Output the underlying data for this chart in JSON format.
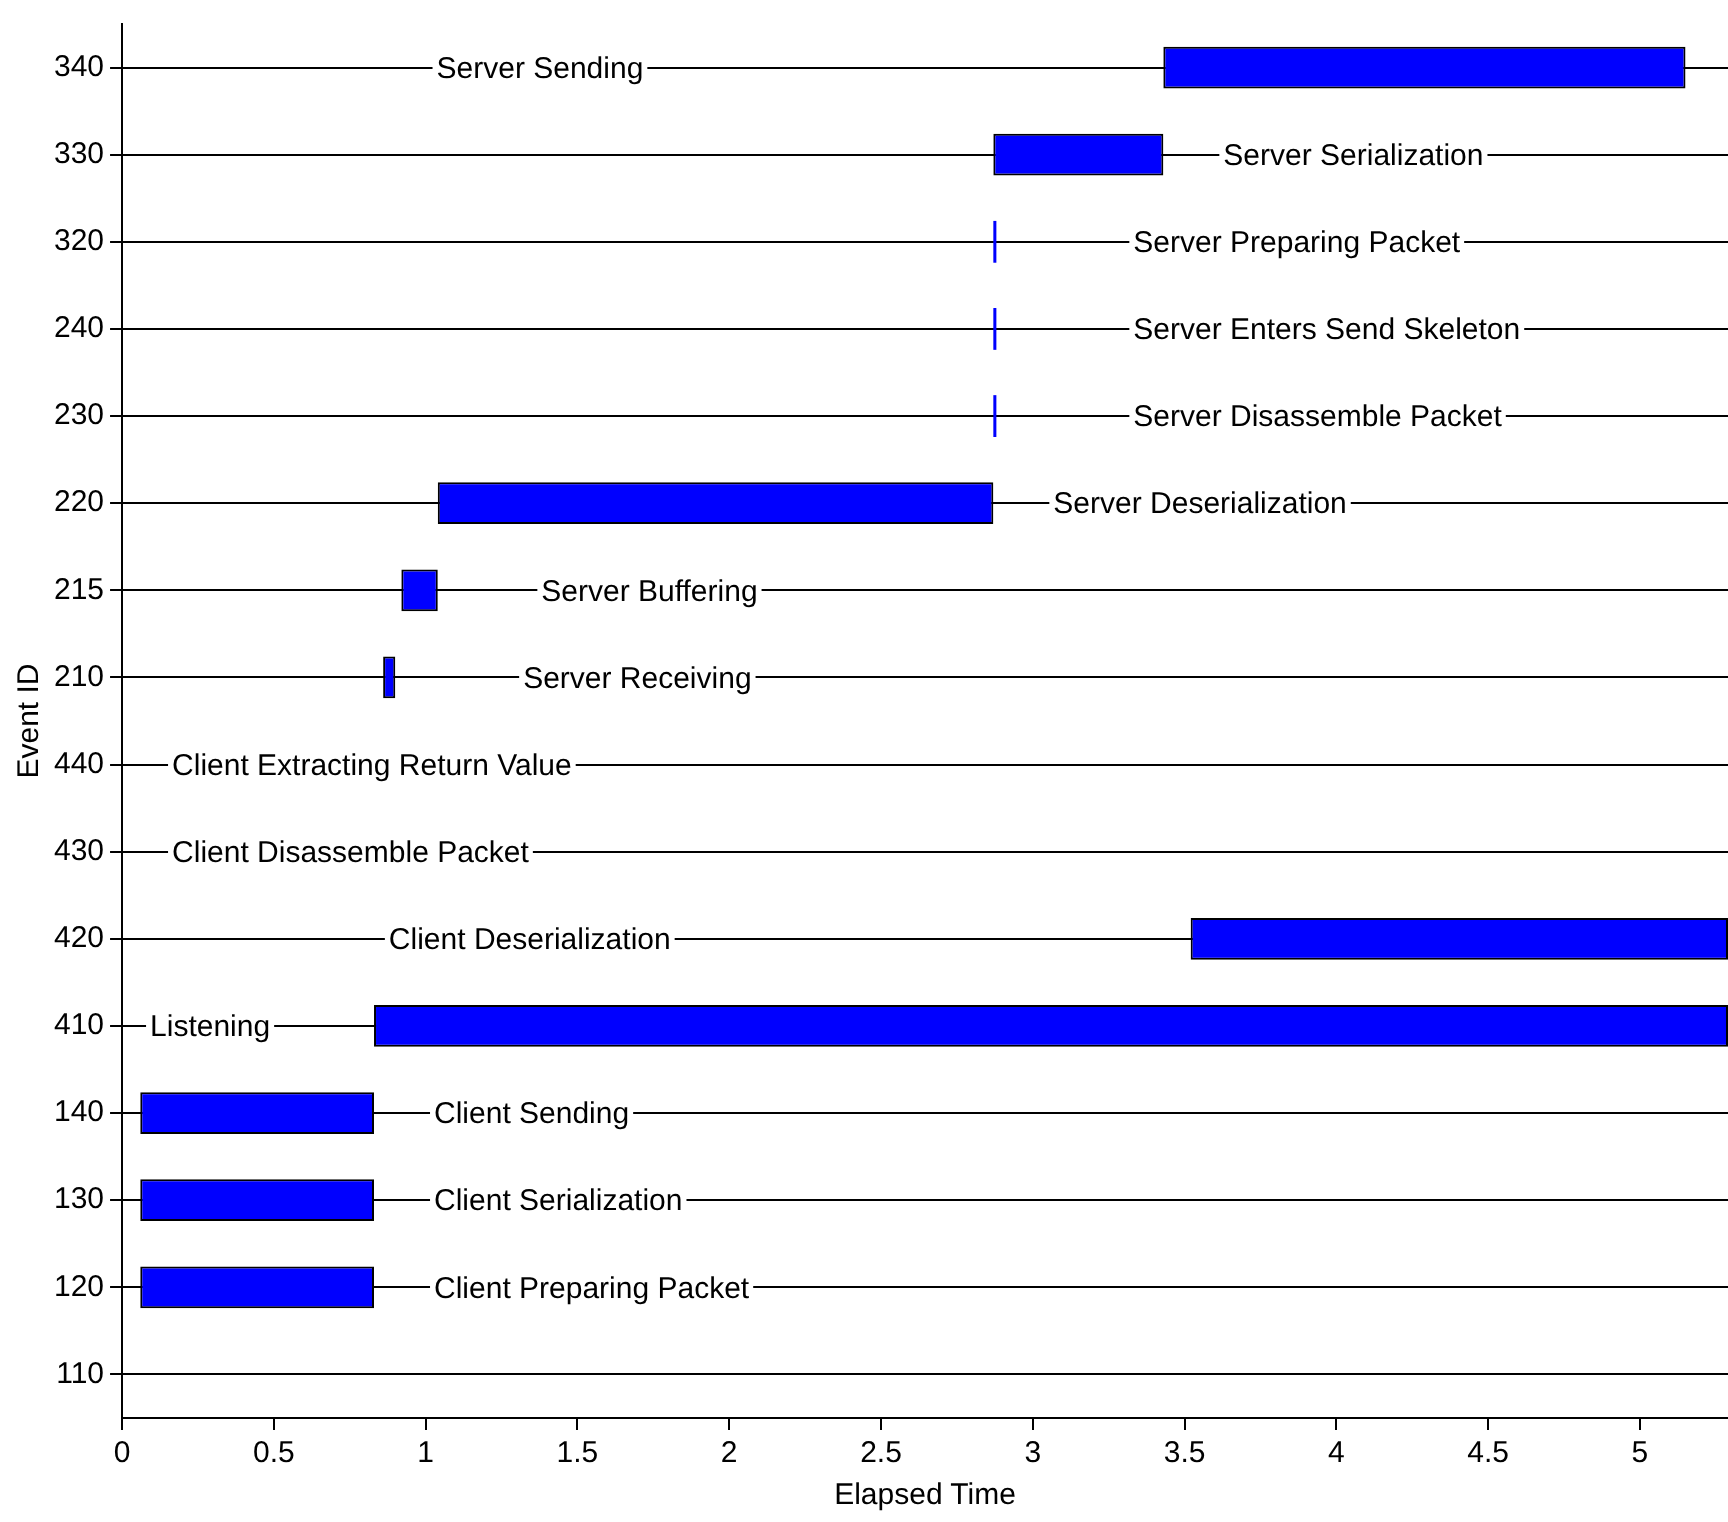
{
  "chart_data": {
    "type": "bar",
    "orientation": "horizontal",
    "xlabel": "Elapsed Time",
    "ylabel": "Event ID",
    "categories": [
      "340",
      "330",
      "320",
      "240",
      "230",
      "220",
      "215",
      "210",
      "440",
      "430",
      "420",
      "410",
      "140",
      "130",
      "120",
      "110"
    ],
    "base": [
      3.43,
      2.87,
      2.87,
      2.87,
      2.87,
      1.04,
      0.92,
      0.86,
      null,
      null,
      3.52,
      0.83,
      0.06,
      0.06,
      0.06,
      null
    ],
    "values": [
      1.72,
      0.56,
      0.01,
      0.01,
      0.01,
      1.83,
      0.12,
      0.04,
      null,
      null,
      1.77,
      4.46,
      0.77,
      0.77,
      0.77,
      null
    ],
    "color": "#0000ff",
    "xlim": [
      0,
      5.29
    ],
    "xticks": [
      0,
      0.5,
      1,
      1.5,
      2,
      2.5,
      3,
      3.5,
      4,
      4.5,
      5
    ],
    "grid": "y",
    "annotations": [
      "Server Sending",
      "Server Serialization",
      "Server Preparing Packet",
      "Server Enters Send Skeleton",
      "Server Disassemble Packet",
      "Server Deserialization",
      "Server Buffering",
      "Server Receiving",
      "Client Extracting Return Value",
      "Client Disassemble Packet",
      "Client Deserialization",
      "Listening",
      "Client Sending",
      "Client Serialization",
      "Client Preparing Packet"
    ]
  }
}
